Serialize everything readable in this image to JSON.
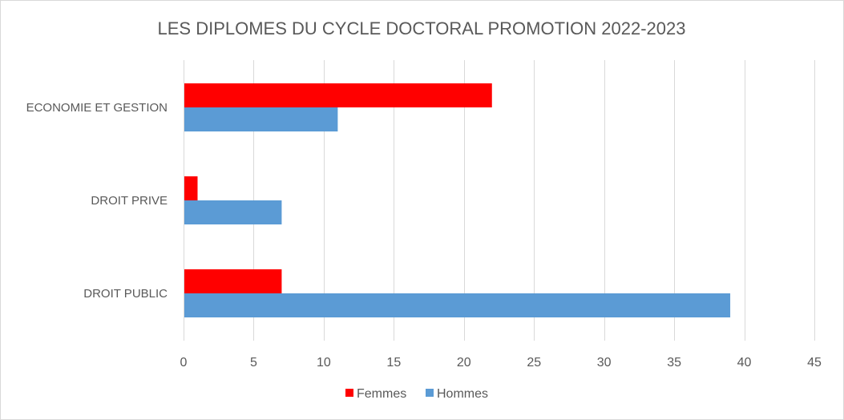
{
  "chart_data": {
    "type": "bar",
    "orientation": "horizontal",
    "title": "LES DIPLOMES DU CYCLE DOCTORAL PROMOTION 2022-2023",
    "categories": [
      "ECONOMIE ET GESTION",
      "DROIT PRIVE",
      "DROIT PUBLIC"
    ],
    "series": [
      {
        "name": "Femmes",
        "color": "#ff0000",
        "values": [
          22,
          1,
          7
        ]
      },
      {
        "name": "Hommes",
        "color": "#5b9bd5",
        "values": [
          11,
          7,
          39
        ]
      }
    ],
    "xticks": [
      0,
      5,
      10,
      15,
      20,
      25,
      30,
      35,
      40,
      45
    ],
    "xlim": [
      0,
      45
    ],
    "grid": true,
    "legend": "bottom",
    "xlabel": "",
    "ylabel": ""
  }
}
